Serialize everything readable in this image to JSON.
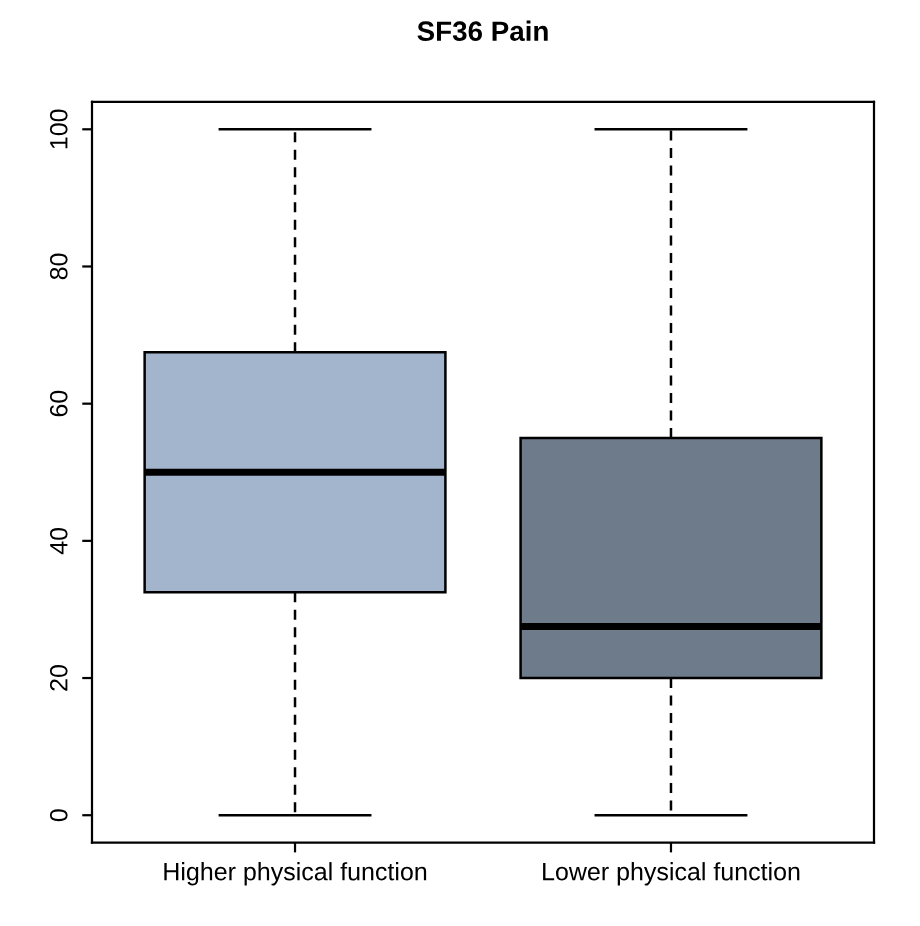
{
  "chart_data": {
    "type": "box",
    "title": "SF36 Pain",
    "categories": [
      "Higher physical function",
      "Lower physical function"
    ],
    "colors": [
      "#a2b5cd",
      "#6e7b8b"
    ],
    "boxes": [
      {
        "low": 0,
        "q1": 32.5,
        "median": 50,
        "q3": 67.5,
        "high": 100
      },
      {
        "low": 0,
        "q1": 20,
        "median": 27.5,
        "q3": 55,
        "high": 100
      }
    ],
    "ylim": [
      -4,
      104
    ],
    "yticks": [
      0,
      20,
      40,
      60,
      80,
      100
    ],
    "grid": false
  }
}
